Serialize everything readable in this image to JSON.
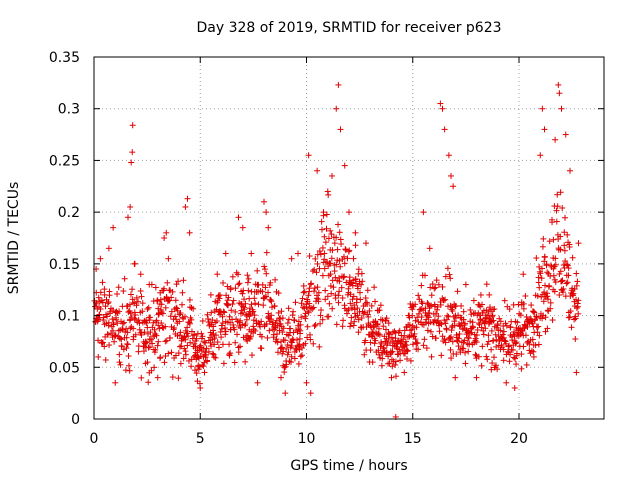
{
  "chart_data": {
    "type": "scatter",
    "title": "Day 328 of 2019, SRMTID for receiver p623",
    "xlabel": "GPS time / hours",
    "ylabel": "SRMTID / TECUs",
    "xlim": [
      0,
      24
    ],
    "ylim": [
      0,
      0.35
    ],
    "xticks": [
      0,
      5,
      10,
      15,
      20
    ],
    "xtick_labels": [
      "0",
      "5",
      "10",
      "15",
      "20"
    ],
    "yticks": [
      0,
      0.05,
      0.1,
      0.15,
      0.2,
      0.25,
      0.3,
      0.35
    ],
    "ytick_labels": [
      "0",
      "0.05",
      "0.1",
      "0.15",
      "0.2",
      "0.25",
      "0.3",
      "0.35"
    ],
    "grid": true,
    "legend": false,
    "marker": "+",
    "color": "#e00000",
    "envelope": {
      "hours": [
        0,
        0.5,
        1,
        1.5,
        1.8,
        2,
        2.5,
        3,
        3.4,
        4,
        4.5,
        5,
        5.5,
        6,
        6.5,
        7,
        7.5,
        8,
        8.5,
        9,
        9.5,
        10,
        10.3,
        10.8,
        11.3,
        11.6,
        12,
        12.5,
        13,
        13.5,
        14,
        14.2,
        14.5,
        15,
        15.5,
        16,
        16.5,
        17,
        17.5,
        18,
        18.5,
        19,
        19.5,
        20,
        20.5,
        21,
        21.5,
        21.8,
        22.2,
        22.5,
        22.8
      ],
      "center": [
        0.1,
        0.1,
        0.09,
        0.085,
        0.09,
        0.09,
        0.085,
        0.09,
        0.1,
        0.09,
        0.08,
        0.06,
        0.08,
        0.1,
        0.1,
        0.1,
        0.09,
        0.11,
        0.09,
        0.07,
        0.08,
        0.11,
        0.12,
        0.14,
        0.15,
        0.14,
        0.13,
        0.11,
        0.09,
        0.08,
        0.07,
        0.065,
        0.07,
        0.09,
        0.1,
        0.11,
        0.1,
        0.09,
        0.085,
        0.09,
        0.085,
        0.08,
        0.08,
        0.08,
        0.09,
        0.12,
        0.15,
        0.17,
        0.15,
        0.12,
        0.11
      ],
      "spread": [
        0.035,
        0.04,
        0.04,
        0.04,
        0.05,
        0.045,
        0.04,
        0.04,
        0.045,
        0.045,
        0.04,
        0.025,
        0.035,
        0.04,
        0.045,
        0.045,
        0.04,
        0.05,
        0.04,
        0.035,
        0.035,
        0.045,
        0.05,
        0.055,
        0.065,
        0.065,
        0.05,
        0.04,
        0.035,
        0.03,
        0.025,
        0.02,
        0.025,
        0.035,
        0.04,
        0.045,
        0.045,
        0.04,
        0.035,
        0.035,
        0.035,
        0.03,
        0.03,
        0.03,
        0.035,
        0.05,
        0.06,
        0.07,
        0.06,
        0.045,
        0.04
      ]
    },
    "series": [
      {
        "name": "SRMTID",
        "points": [
          [
            0.1,
            0.145
          ],
          [
            0.2,
            0.06
          ],
          [
            0.3,
            0.155
          ],
          [
            0.5,
            0.12
          ],
          [
            0.7,
            0.165
          ],
          [
            0.9,
            0.185
          ],
          [
            1.0,
            0.035
          ],
          [
            1.6,
            0.195
          ],
          [
            1.7,
            0.205
          ],
          [
            1.75,
            0.248
          ],
          [
            1.8,
            0.258
          ],
          [
            1.82,
            0.284
          ],
          [
            1.9,
            0.15
          ],
          [
            2.2,
            0.14
          ],
          [
            2.6,
            0.13
          ],
          [
            3.0,
            0.04
          ],
          [
            3.3,
            0.175
          ],
          [
            3.4,
            0.18
          ],
          [
            3.5,
            0.155
          ],
          [
            4.3,
            0.205
          ],
          [
            4.4,
            0.213
          ],
          [
            4.5,
            0.18
          ],
          [
            4.7,
            0.06
          ],
          [
            5.0,
            0.03
          ],
          [
            5.2,
            0.045
          ],
          [
            5.5,
            0.12
          ],
          [
            5.8,
            0.14
          ],
          [
            6.2,
            0.16
          ],
          [
            6.8,
            0.195
          ],
          [
            7.0,
            0.185
          ],
          [
            7.4,
            0.16
          ],
          [
            7.7,
            0.035
          ],
          [
            8.0,
            0.21
          ],
          [
            8.1,
            0.2
          ],
          [
            8.2,
            0.185
          ],
          [
            8.8,
            0.04
          ],
          [
            9.0,
            0.025
          ],
          [
            9.3,
            0.155
          ],
          [
            9.6,
            0.16
          ],
          [
            10.0,
            0.035
          ],
          [
            10.1,
            0.255
          ],
          [
            10.2,
            0.025
          ],
          [
            10.5,
            0.24
          ],
          [
            10.8,
            0.2
          ],
          [
            11.0,
            0.22
          ],
          [
            11.2,
            0.235
          ],
          [
            11.4,
            0.3
          ],
          [
            11.5,
            0.323
          ],
          [
            11.6,
            0.28
          ],
          [
            11.8,
            0.245
          ],
          [
            12.0,
            0.2
          ],
          [
            12.3,
            0.18
          ],
          [
            12.8,
            0.17
          ],
          [
            13.5,
            0.11
          ],
          [
            14.0,
            0.04
          ],
          [
            14.2,
            0.002
          ],
          [
            14.6,
            0.045
          ],
          [
            15.0,
            0.09
          ],
          [
            15.5,
            0.2
          ],
          [
            15.8,
            0.165
          ],
          [
            16.3,
            0.305
          ],
          [
            16.4,
            0.3
          ],
          [
            16.5,
            0.28
          ],
          [
            16.7,
            0.255
          ],
          [
            16.8,
            0.235
          ],
          [
            16.9,
            0.225
          ],
          [
            17.0,
            0.04
          ],
          [
            17.5,
            0.13
          ],
          [
            18.0,
            0.04
          ],
          [
            18.6,
            0.12
          ],
          [
            19.4,
            0.035
          ],
          [
            19.8,
            0.03
          ],
          [
            20.2,
            0.14
          ],
          [
            20.7,
            0.06
          ],
          [
            21.0,
            0.255
          ],
          [
            21.1,
            0.3
          ],
          [
            21.2,
            0.28
          ],
          [
            21.7,
            0.27
          ],
          [
            21.85,
            0.323
          ],
          [
            21.9,
            0.315
          ],
          [
            22.0,
            0.3
          ],
          [
            22.2,
            0.275
          ],
          [
            22.4,
            0.24
          ],
          [
            22.7,
            0.045
          ],
          [
            22.8,
            0.17
          ]
        ]
      }
    ]
  }
}
